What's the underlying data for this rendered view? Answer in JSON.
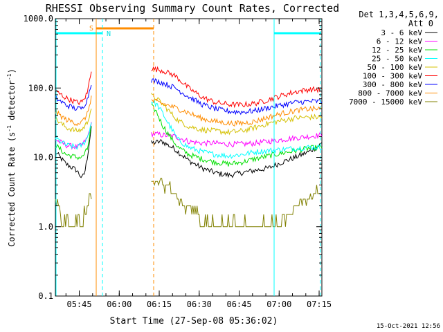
{
  "chart_data": {
    "type": "line",
    "title": "RHESSI Observing Summary Count Rates, Corrected",
    "xlabel": "Start Time (27-Sep-08 05:36:02)",
    "ylabel_main": "Corrected Count Rate (s",
    "ylabel_sup1": "-1",
    "ylabel_mid": " detector",
    "ylabel_sup2": "-1",
    "ylabel_end": ")",
    "y_scale": "log",
    "ylim": [
      0.1,
      1000
    ],
    "x_unit": "minutes after 05:36:02",
    "xlim": [
      0,
      100
    ],
    "yticks": [
      {
        "value": 1000,
        "label": "1000.0"
      },
      {
        "value": 100,
        "label": "100.0"
      },
      {
        "value": 10,
        "label": "10.0"
      },
      {
        "value": 1,
        "label": "1.0"
      },
      {
        "value": 0.1,
        "label": "0.1"
      }
    ],
    "xticks": [
      {
        "value": 8.97,
        "label": "05:45"
      },
      {
        "value": 23.97,
        "label": "06:00"
      },
      {
        "value": 38.97,
        "label": "06:15"
      },
      {
        "value": 53.97,
        "label": "06:30"
      },
      {
        "value": 68.97,
        "label": "06:45"
      },
      {
        "value": 83.97,
        "label": "07:00"
      },
      {
        "value": 98.97,
        "label": "07:15"
      }
    ],
    "legend": {
      "title1": "Det 1,3,4,5,6,9,",
      "title2": "Att 0",
      "placement": "right"
    },
    "series": [
      {
        "name": "3 - 6 keV",
        "color": "#000000",
        "segA": [
          [
            0,
            12
          ],
          [
            4,
            8
          ],
          [
            8,
            6.5
          ],
          [
            10,
            5
          ],
          [
            11,
            6
          ],
          [
            12,
            10
          ],
          [
            13.5,
            28
          ]
        ],
        "segB": [
          [
            36,
            16
          ],
          [
            40,
            17
          ],
          [
            45,
            13
          ],
          [
            50,
            9
          ],
          [
            55,
            7
          ],
          [
            60,
            6
          ],
          [
            65,
            5.5
          ],
          [
            70,
            6
          ],
          [
            75,
            6.5
          ],
          [
            80,
            7
          ],
          [
            85,
            8.5
          ],
          [
            90,
            10
          ],
          [
            95,
            12
          ],
          [
            98,
            14
          ],
          [
            100,
            16
          ]
        ]
      },
      {
        "name": "6 - 12 keV",
        "color": "#ff00ff",
        "segA": [
          [
            0,
            18
          ],
          [
            4,
            15
          ],
          [
            8,
            14
          ],
          [
            10,
            15
          ],
          [
            12,
            19
          ],
          [
            13.5,
            30
          ]
        ],
        "segB": [
          [
            36,
            22
          ],
          [
            40,
            21
          ],
          [
            45,
            20
          ],
          [
            50,
            17
          ],
          [
            55,
            16
          ],
          [
            60,
            16
          ],
          [
            65,
            15.5
          ],
          [
            70,
            15.5
          ],
          [
            75,
            16
          ],
          [
            80,
            17
          ],
          [
            85,
            18
          ],
          [
            90,
            19
          ],
          [
            95,
            20
          ],
          [
            100,
            21
          ]
        ]
      },
      {
        "name": "12 - 25 keV",
        "color": "#00e000",
        "segA": [
          [
            0,
            15
          ],
          [
            4,
            11
          ],
          [
            8,
            10
          ],
          [
            10,
            10
          ],
          [
            12,
            13
          ],
          [
            13.5,
            28
          ]
        ],
        "segB": [
          [
            36,
            55
          ],
          [
            38,
            45
          ],
          [
            40,
            30
          ],
          [
            43,
            20
          ],
          [
            46,
            14
          ],
          [
            50,
            11
          ],
          [
            55,
            9.5
          ],
          [
            60,
            8.5
          ],
          [
            65,
            8
          ],
          [
            70,
            8.5
          ],
          [
            75,
            9.5
          ],
          [
            80,
            10.5
          ],
          [
            85,
            11.5
          ],
          [
            90,
            12.5
          ],
          [
            95,
            13.5
          ],
          [
            100,
            14
          ]
        ]
      },
      {
        "name": "25 - 50 keV",
        "color": "#00ffff",
        "segA": [
          [
            0,
            19
          ],
          [
            4,
            15
          ],
          [
            8,
            14
          ],
          [
            10,
            15
          ],
          [
            12,
            19
          ],
          [
            13.5,
            32
          ]
        ],
        "segB": [
          [
            36,
            65
          ],
          [
            38,
            58
          ],
          [
            40,
            45
          ],
          [
            43,
            28
          ],
          [
            46,
            18
          ],
          [
            50,
            14
          ],
          [
            55,
            12
          ],
          [
            60,
            11
          ],
          [
            65,
            10.5
          ],
          [
            70,
            11
          ],
          [
            75,
            12
          ],
          [
            80,
            12.5
          ],
          [
            85,
            13
          ],
          [
            90,
            13.5
          ],
          [
            95,
            14
          ],
          [
            100,
            14
          ]
        ]
      },
      {
        "name": "50 - 100 keV",
        "color": "#d4c000",
        "segA": [
          [
            0,
            36
          ],
          [
            4,
            27
          ],
          [
            8,
            24
          ],
          [
            10,
            25
          ],
          [
            12,
            32
          ],
          [
            13.5,
            52
          ]
        ],
        "segB": [
          [
            36,
            78
          ],
          [
            38,
            70
          ],
          [
            40,
            60
          ],
          [
            43,
            45
          ],
          [
            46,
            34
          ],
          [
            50,
            28
          ],
          [
            55,
            25
          ],
          [
            60,
            24
          ],
          [
            65,
            23
          ],
          [
            70,
            24
          ],
          [
            75,
            27
          ],
          [
            80,
            31
          ],
          [
            85,
            34
          ],
          [
            90,
            37
          ],
          [
            95,
            38
          ],
          [
            100,
            38
          ]
        ]
      },
      {
        "name": "100 - 300 keV",
        "color": "#ff0000",
        "segA": [
          [
            0,
            90
          ],
          [
            4,
            72
          ],
          [
            8,
            62
          ],
          [
            10,
            62
          ],
          [
            12,
            85
          ],
          [
            13.5,
            185
          ]
        ],
        "segB": [
          [
            36,
            190
          ],
          [
            40,
            180
          ],
          [
            45,
            150
          ],
          [
            50,
            100
          ],
          [
            55,
            74
          ],
          [
            60,
            62
          ],
          [
            65,
            58
          ],
          [
            70,
            57
          ],
          [
            75,
            60
          ],
          [
            80,
            68
          ],
          [
            85,
            78
          ],
          [
            90,
            88
          ],
          [
            95,
            95
          ],
          [
            100,
            95
          ]
        ]
      },
      {
        "name": "300 - 800 keV",
        "color": "#0000ff",
        "segA": [
          [
            0,
            72
          ],
          [
            4,
            57
          ],
          [
            8,
            50
          ],
          [
            10,
            51
          ],
          [
            12,
            68
          ],
          [
            13.5,
            120
          ]
        ],
        "segB": [
          [
            36,
            130
          ],
          [
            40,
            120
          ],
          [
            45,
            100
          ],
          [
            50,
            75
          ],
          [
            55,
            58
          ],
          [
            60,
            50
          ],
          [
            65,
            46
          ],
          [
            70,
            45
          ],
          [
            75,
            47
          ],
          [
            80,
            52
          ],
          [
            85,
            57
          ],
          [
            90,
            62
          ],
          [
            95,
            64
          ],
          [
            100,
            64
          ]
        ]
      },
      {
        "name": "800 - 7000 keV",
        "color": "#ff8c00",
        "segA": [
          [
            0,
            45
          ],
          [
            4,
            35
          ],
          [
            8,
            31
          ],
          [
            10,
            32
          ],
          [
            12,
            42
          ],
          [
            13.5,
            75
          ]
        ],
        "segB": [
          [
            36,
            66
          ],
          [
            40,
            60
          ],
          [
            45,
            52
          ],
          [
            50,
            44
          ],
          [
            55,
            36
          ],
          [
            60,
            33
          ],
          [
            65,
            31
          ],
          [
            70,
            31
          ],
          [
            75,
            33
          ],
          [
            80,
            38
          ],
          [
            85,
            43
          ],
          [
            90,
            47
          ],
          [
            95,
            50
          ],
          [
            100,
            50
          ]
        ]
      },
      {
        "name": "7000 - 15000 keV",
        "color": "#808000",
        "segA": [
          [
            0,
            2.5
          ],
          [
            1.5,
            1.8
          ],
          [
            2.5,
            1
          ],
          [
            5,
            1
          ],
          [
            8,
            1
          ],
          [
            10,
            1
          ],
          [
            11.5,
            1.5
          ],
          [
            12.5,
            2.5
          ],
          [
            13.5,
            3
          ]
        ],
        "segB": [
          [
            36,
            4.5
          ],
          [
            40,
            4.3
          ],
          [
            43,
            3.5
          ],
          [
            46,
            2.5
          ],
          [
            49,
            2
          ],
          [
            52,
            1.5
          ],
          [
            55,
            1.1
          ],
          [
            60,
            1
          ],
          [
            70,
            1
          ],
          [
            80,
            1
          ],
          [
            84,
            1.1
          ],
          [
            87,
            1.5
          ],
          [
            90,
            2
          ],
          [
            93,
            2.5
          ],
          [
            96,
            2.5
          ],
          [
            98,
            3
          ],
          [
            100,
            3
          ]
        ]
      }
    ],
    "markers": [
      {
        "label": "S",
        "color": "#ff8c00"
      },
      {
        "label": "N",
        "color": "#00e0e0"
      }
    ],
    "timestamp": "15-Oct-2021 12:56"
  }
}
